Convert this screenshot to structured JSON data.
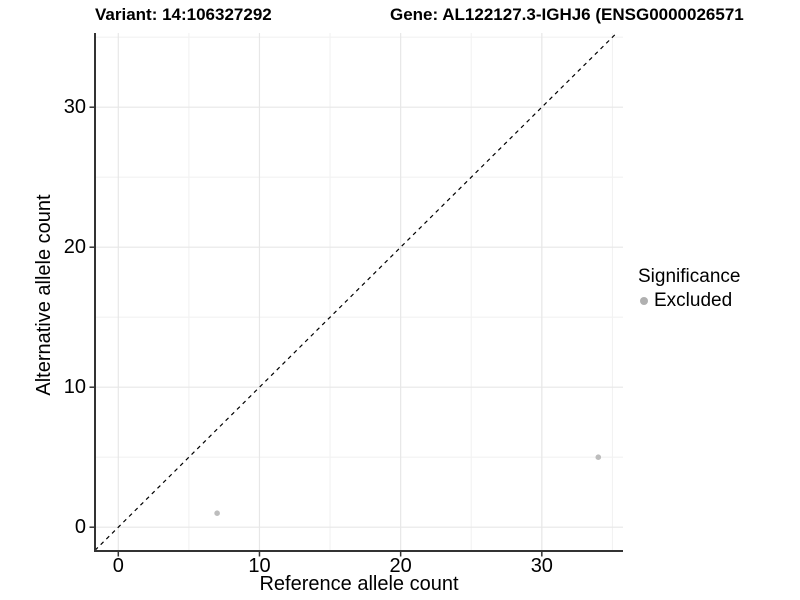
{
  "chart_data": {
    "type": "scatter",
    "title_left": "Variant: 14:106327292",
    "title_right": "Gene: AL122127.3-IGHJ6 (ENSG0000026571",
    "xlabel": "Reference allele count",
    "ylabel": "Alternative allele count",
    "x_ticks": [
      0,
      10,
      20,
      30
    ],
    "y_ticks": [
      0,
      10,
      20,
      30
    ],
    "x_minor_ticks": [
      5,
      15,
      25,
      35
    ],
    "y_minor_ticks": [
      5,
      15,
      25,
      35
    ],
    "xlim": [
      -1.65,
      35.75
    ],
    "ylim": [
      -1.7,
      35.3
    ],
    "grid": true,
    "identity_line": {
      "style": "dashed",
      "slope": 1,
      "intercept": 0,
      "color": "#000000"
    },
    "points": [
      {
        "x": 7,
        "y": 1,
        "significance": "Excluded"
      },
      {
        "x": 34,
        "y": 5,
        "significance": "Excluded"
      }
    ],
    "point_color": "#bdbdbd",
    "point_radius": 2.8,
    "legend": {
      "title": "Significance",
      "position": "right",
      "entries": [
        {
          "label": "Excluded",
          "color": "#b0b0b0"
        }
      ]
    },
    "colors": {
      "grid_major": "#e7e7e7",
      "grid_minor": "#f2f2f2",
      "axis_line": "#333333",
      "tick_mark": "#333333",
      "tick_label": "#000000"
    }
  }
}
